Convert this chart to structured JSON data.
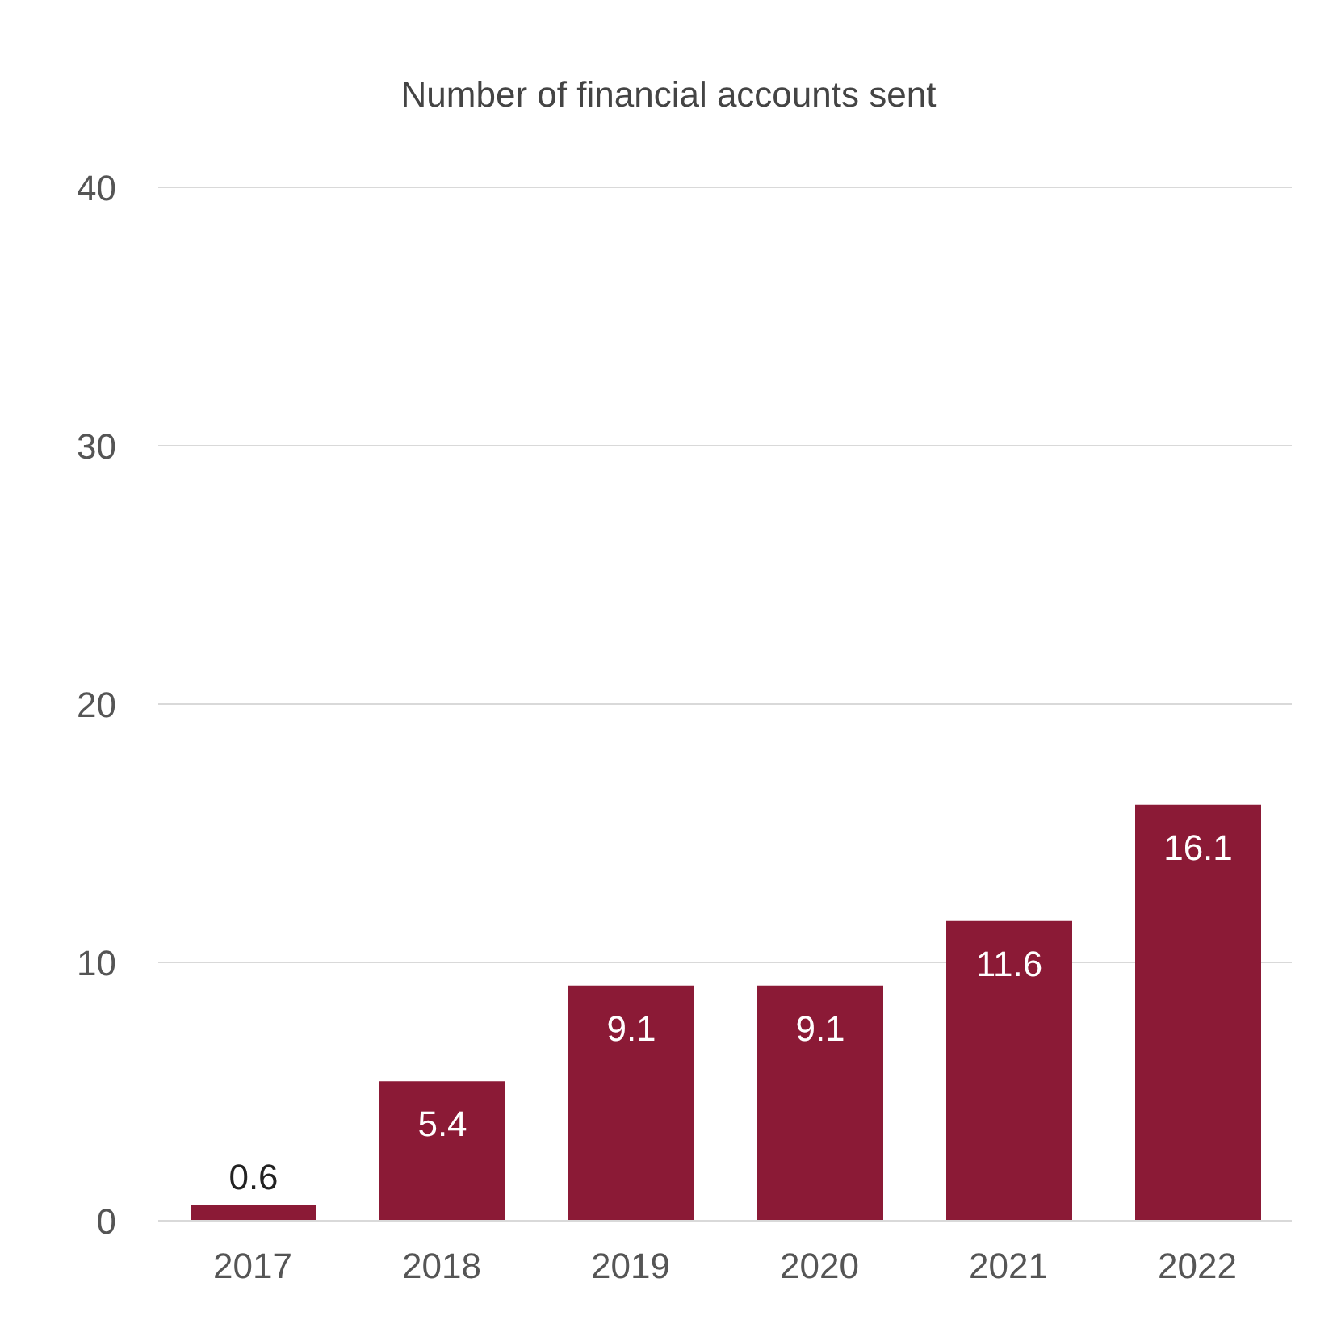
{
  "chart_data": {
    "type": "bar",
    "title": "Number of financial accounts sent",
    "categories": [
      "2017",
      "2018",
      "2019",
      "2020",
      "2021",
      "2022"
    ],
    "values": [
      0.6,
      5.4,
      9.1,
      9.1,
      11.6,
      16.1
    ],
    "color": "#8b1a36",
    "ylim": [
      0,
      40
    ],
    "yticks": [
      0,
      10,
      20,
      30,
      40
    ],
    "grid": "y",
    "data_labels": true,
    "legend": false
  }
}
